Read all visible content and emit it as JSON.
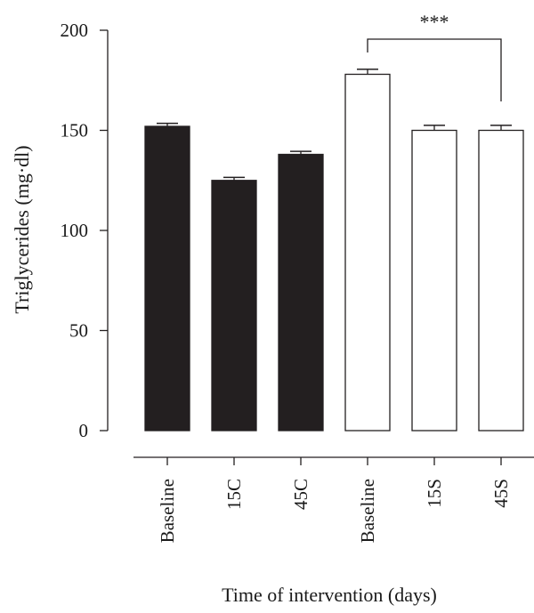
{
  "chart_data": {
    "type": "bar",
    "title": "",
    "xlabel": "Time of intervention (days)",
    "ylabel": "Triglycerides (mg·dl)",
    "ylim": [
      0,
      200
    ],
    "yticks": [
      0,
      50,
      100,
      150,
      200
    ],
    "categories": [
      "Baseline",
      "15C",
      "45C",
      "Baseline",
      "15S",
      "45S"
    ],
    "values": [
      152,
      125,
      138,
      178,
      150,
      150
    ],
    "errors": [
      1.5,
      1.5,
      1.5,
      2.5,
      2.5,
      2.5
    ],
    "bar_fills": [
      "#231f20",
      "#231f20",
      "#231f20",
      "#ffffff",
      "#ffffff",
      "#ffffff"
    ],
    "grid": false,
    "annotations": [
      {
        "type": "significance-bracket",
        "from_index": 3,
        "to_index": 5,
        "label": "***"
      }
    ]
  }
}
